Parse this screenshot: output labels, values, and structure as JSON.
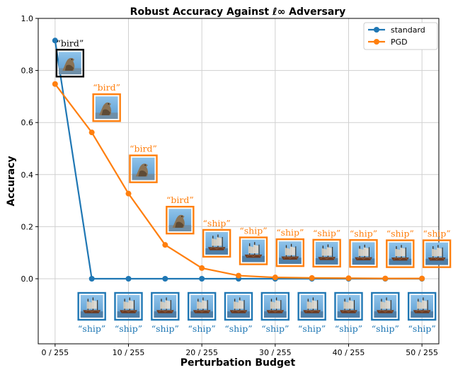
{
  "chart_data": {
    "type": "line",
    "title": "Robust Accuracy Against ℓ∞ Adversary",
    "xlabel": "Perturbation Budget",
    "ylabel": "Accuracy",
    "x": [
      0,
      5,
      10,
      15,
      20,
      25,
      30,
      35,
      40,
      45,
      50
    ],
    "x_tick_values": [
      0,
      10,
      20,
      30,
      40,
      50
    ],
    "x_tick_labels": [
      "0 / 255",
      "10 / 255",
      "20 / 255",
      "30 / 255",
      "40 / 255",
      "50 / 255"
    ],
    "xlim": [
      -2.3,
      52.3
    ],
    "y_ticks": [
      0.0,
      0.2,
      0.4,
      0.6,
      0.8,
      1.0
    ],
    "y_tick_labels": [
      "0.0",
      "0.2",
      "0.4",
      "0.6",
      "0.8",
      "1.0"
    ],
    "ylim": [
      -0.25,
      1.0
    ],
    "grid": true,
    "legend_position": "top-right",
    "series": [
      {
        "name": "standard",
        "color": "#1f77b4",
        "values": [
          0.915,
          0.0,
          0.0,
          0.0,
          0.0,
          0.0,
          0.0,
          0.0,
          0.0,
          0.0,
          0.0
        ],
        "image_labels": [
          "“bird”",
          "“ship”",
          "“ship”",
          "“ship”",
          "“ship”",
          "“ship”",
          "“ship”",
          "“ship”",
          "“ship”",
          "“ship”",
          "“ship”"
        ]
      },
      {
        "name": "PGD",
        "color": "#ff7f0e",
        "values": [
          0.748,
          0.562,
          0.327,
          0.13,
          0.041,
          0.012,
          0.005,
          0.003,
          0.002,
          0.001,
          0.001
        ],
        "image_labels": [
          "",
          "“bird”",
          "“bird”",
          "“bird”",
          "“ship”",
          "“ship”",
          "“ship”",
          "“ship”",
          "“ship”",
          "“ship”",
          "“ship”"
        ]
      }
    ],
    "first_image_frame_color": "#000000"
  }
}
